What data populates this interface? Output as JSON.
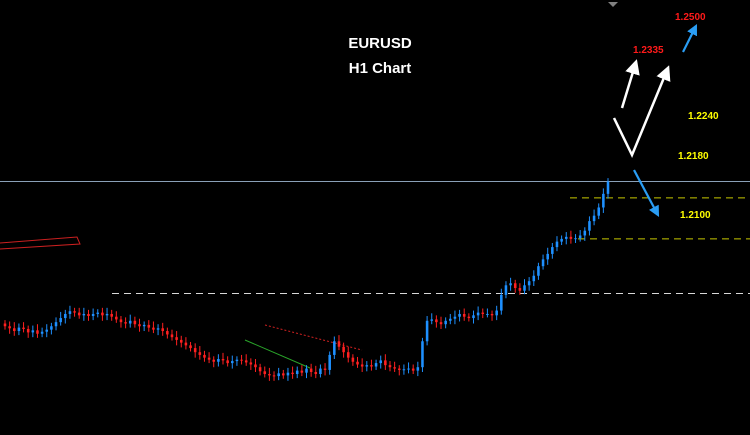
{
  "header": {
    "title": "EURUSD",
    "subtitle": "H1 Chart"
  },
  "colors": {
    "background": "#000000",
    "bull": "#1e90ff",
    "bear": "#ff2020",
    "level_line": "#c8c800",
    "level_label": "#ffff00",
    "target_label": "#ff1a1a",
    "arrow_white": "#ffffff",
    "arrow_blue": "#2a9df4",
    "support_line": "#c8c8c8",
    "trend_red": "#cc2020",
    "trend_green": "#2aa52a",
    "price_line": "#8aa0b8"
  },
  "chart_data": {
    "type": "candlestick",
    "title": "EURUSD",
    "subtitle": "H1 Chart",
    "ylim": [
      1.19,
      1.253
    ],
    "levels": [
      {
        "value": 1.224,
        "label": "1.2240",
        "style": "dashed-yellow"
      },
      {
        "value": 1.218,
        "label": "1.2180",
        "style": "dashed-yellow"
      },
      {
        "value": 1.21,
        "label": "1.2100",
        "style": "dashed-white"
      }
    ],
    "targets": [
      {
        "value": 1.2335,
        "label": "1.2335"
      },
      {
        "value": 1.25,
        "label": "1.2500"
      }
    ],
    "current_price_line": 1.2264,
    "close_series": [
      1.2052,
      1.2049,
      1.2045,
      1.205,
      1.2048,
      1.2043,
      1.2046,
      1.2041,
      1.2044,
      1.2047,
      1.2052,
      1.2058,
      1.2064,
      1.207,
      1.2074,
      1.2072,
      1.2068,
      1.207,
      1.2067,
      1.207,
      1.2072,
      1.2068,
      1.207,
      1.2066,
      1.2062,
      1.2058,
      1.2056,
      1.206,
      1.2055,
      1.2052,
      1.2054,
      1.205,
      1.2047,
      1.2049,
      1.2045,
      1.204,
      1.2036,
      1.2032,
      1.2028,
      1.2024,
      1.202,
      1.2014,
      1.201,
      1.2006,
      1.2003,
      1.2,
      1.2004,
      1.2002,
      1.1998,
      1.2001,
      1.2003,
      1.2002,
      1.1999,
      1.1996,
      1.1992,
      1.1986,
      1.1982,
      1.198,
      1.1979,
      1.1983,
      1.198,
      1.1984,
      1.1982,
      1.1987,
      1.1984,
      1.199,
      1.1985,
      1.1982,
      1.199,
      1.1988,
      1.201,
      1.203,
      1.2022,
      1.2014,
      1.2006,
      1.2,
      1.1996,
      1.1993,
      1.1995,
      1.1993,
      1.1998,
      1.2002,
      1.1995,
      1.1992,
      1.199,
      1.1988,
      1.1989,
      1.199,
      1.1987,
      1.1992,
      1.203,
      1.206,
      1.2062,
      1.2058,
      1.2055,
      1.206,
      1.2063,
      1.2066,
      1.207,
      1.2066,
      1.2064,
      1.2068,
      1.2072,
      1.207,
      1.207,
      1.2068,
      1.2075,
      1.2098,
      1.2112,
      1.2115,
      1.2108,
      1.2104,
      1.2112,
      1.2118,
      1.2126,
      1.214,
      1.215,
      1.2158,
      1.2168,
      1.2176,
      1.218,
      1.2183,
      1.218,
      1.2181,
      1.2185,
      1.2192,
      1.2206,
      1.2214,
      1.2226,
      1.2246,
      1.2264
    ]
  }
}
